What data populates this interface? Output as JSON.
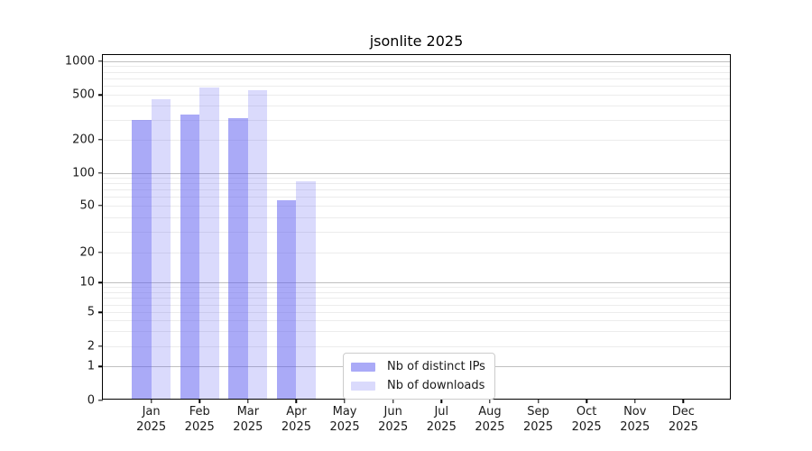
{
  "chart_data": {
    "type": "bar",
    "title": "jsonlite 2025",
    "y_scale": "symlog",
    "ylim": [
      0,
      1000
    ],
    "y_ticks": [
      0,
      1,
      2,
      5,
      10,
      20,
      50,
      100,
      200,
      500,
      1000
    ],
    "y_major_gridlines": [
      1,
      10,
      100,
      1000
    ],
    "grid": true,
    "legend_position": "inside-bottom-center",
    "months": [
      "Jan",
      "Feb",
      "Mar",
      "Apr",
      "May",
      "Jun",
      "Jul",
      "Aug",
      "Sep",
      "Oct",
      "Nov",
      "Dec"
    ],
    "year": "2025",
    "series": [
      {
        "name": "Nb of distinct IPs",
        "color": "rgba(85,85,240,0.5)",
        "values": [
          290,
          325,
          300,
          54,
          null,
          null,
          null,
          null,
          null,
          null,
          null,
          null
        ]
      },
      {
        "name": "Nb of downloads",
        "color": "rgba(85,85,240,0.22)",
        "values": [
          445,
          560,
          530,
          80,
          null,
          null,
          null,
          null,
          null,
          null,
          null,
          null
        ]
      }
    ]
  },
  "colors": {
    "grid_minor": "#ececec",
    "grid_major": "#c0c0c0",
    "spine": "#000000",
    "text": "#1a1a1a",
    "legend_border": "#cccccc",
    "legend_bg": "#ffffff"
  }
}
